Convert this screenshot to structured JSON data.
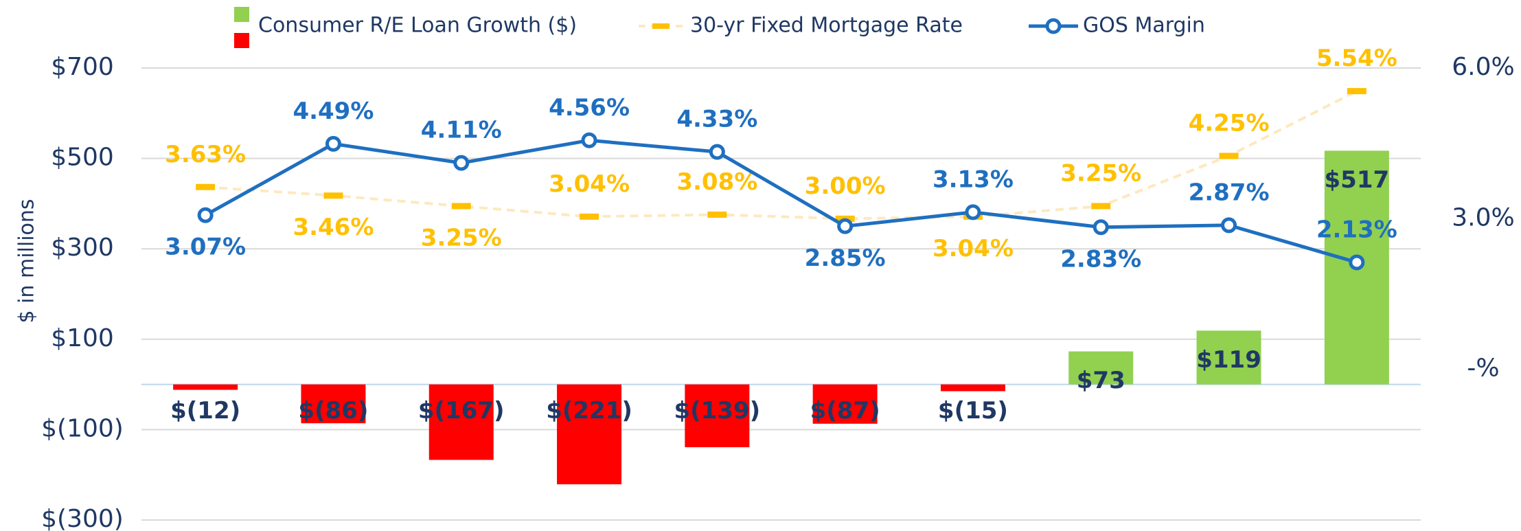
{
  "chart_data": {
    "type": "bar_line",
    "y_label": "$ in millions",
    "categories": [
      null,
      null,
      null,
      null,
      null,
      null,
      null,
      null,
      null,
      null
    ],
    "series": [
      {
        "name": "Consumer R/E Loan Growth ($)",
        "type": "bar",
        "color": "#92d050",
        "negative_color": "#ff0000",
        "values": [
          -12,
          -86,
          -167,
          -221,
          -139,
          -87,
          -15,
          73,
          119,
          517
        ],
        "value_labels": [
          "$(12)",
          "$(86)",
          "$(167)",
          "$(221)",
          "$(139)",
          "$(87)",
          "$(15)",
          "$73",
          "$119",
          "$517"
        ]
      },
      {
        "name": "30-yr Fixed Mortgage Rate",
        "type": "line",
        "axis": "y2",
        "color": "#ffc000",
        "line_color": "#fde9c0",
        "values": [
          3.63,
          3.46,
          3.25,
          3.04,
          3.08,
          3.0,
          3.04,
          3.25,
          4.25,
          5.54
        ],
        "value_labels": [
          "3.63%",
          "3.46%",
          "3.25%",
          "3.04%",
          "3.08%",
          "3.00%",
          "3.04%",
          "3.25%",
          "4.25%",
          "5.54%"
        ]
      },
      {
        "name": "GOS Margin",
        "type": "line",
        "axis": "y2",
        "color": "#1f6fc0",
        "values": [
          3.07,
          4.49,
          4.11,
          4.56,
          4.33,
          2.85,
          3.13,
          2.83,
          2.87,
          2.13
        ],
        "value_labels": [
          "3.07%",
          "4.49%",
          "4.11%",
          "4.56%",
          "4.33%",
          "2.85%",
          "3.13%",
          "2.83%",
          "2.87%",
          "2.13%"
        ]
      }
    ],
    "ylim": [
      -300,
      700
    ],
    "yticks": [
      {
        "value": -300,
        "label": "$(300)"
      },
      {
        "value": -100,
        "label": "$(100)"
      },
      {
        "value": 100,
        "label": "$100"
      },
      {
        "value": 300,
        "label": "$300"
      },
      {
        "value": 500,
        "label": "$500"
      },
      {
        "value": 700,
        "label": "$700"
      }
    ],
    "y2lim": [
      -3,
      6
    ],
    "y2ticks": [
      {
        "value": 0,
        "label": "-%"
      },
      {
        "value": 3,
        "label": "3.0%"
      },
      {
        "value": 6,
        "label": "6.0%"
      }
    ],
    "grid": true,
    "legend": "top"
  }
}
